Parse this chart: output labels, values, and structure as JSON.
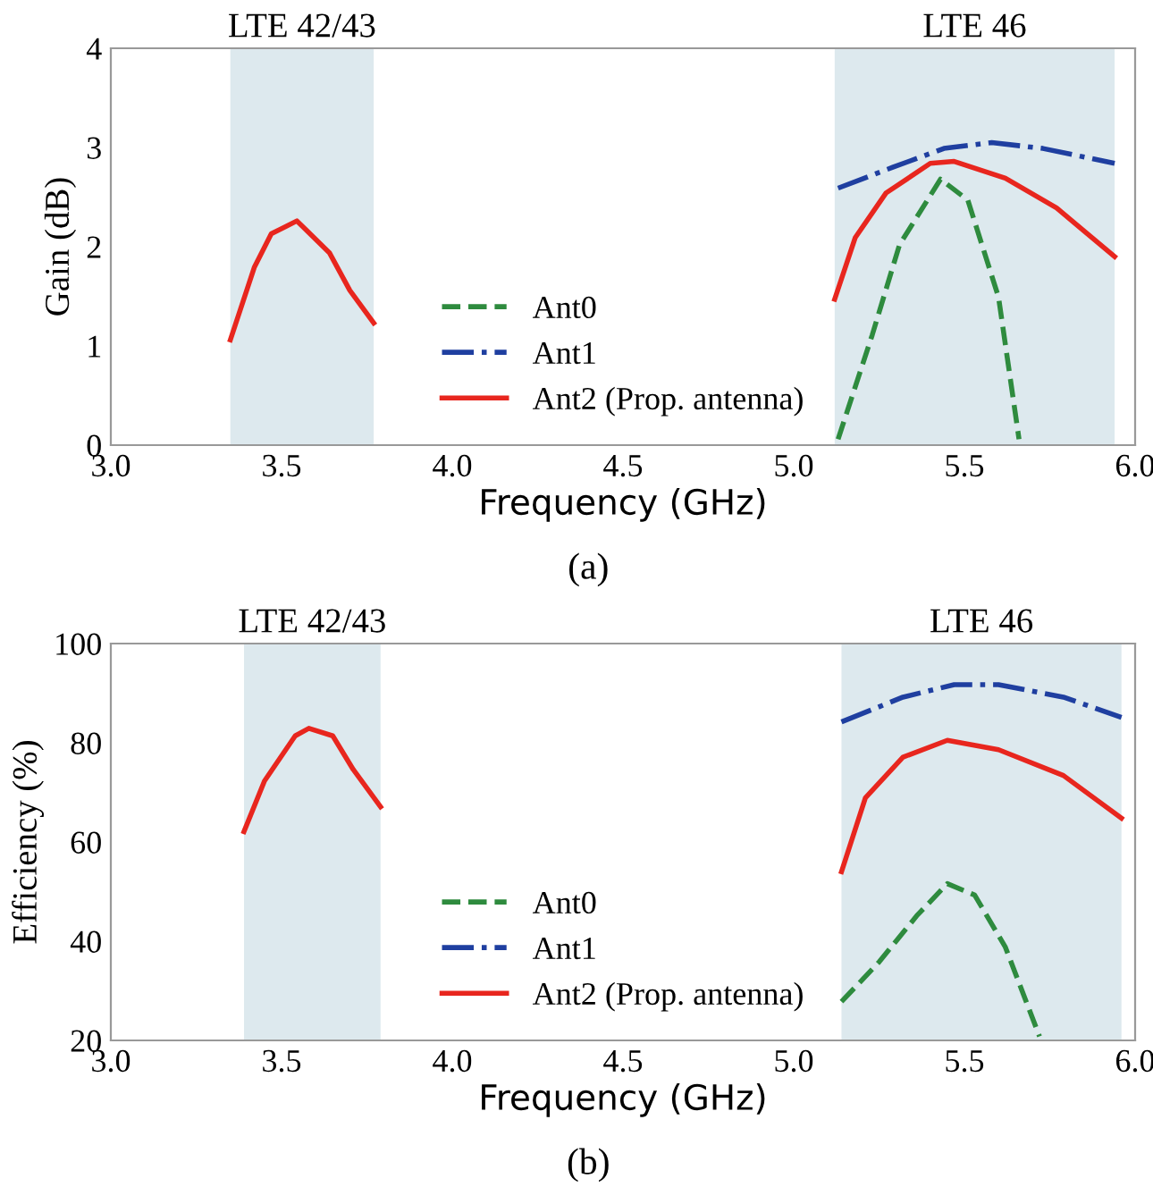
{
  "chart_data": [
    {
      "type": "line",
      "xlabel": "Frequency (GHz)",
      "ylabel": "Gain (dB)",
      "xlim": [
        3.0,
        6.0
      ],
      "xticks": [
        {
          "value": 3.0,
          "label": "3.0"
        },
        {
          "value": 3.5,
          "label": "3.5"
        },
        {
          "value": 4.0,
          "label": "4.0"
        },
        {
          "value": 4.5,
          "label": "4.5"
        },
        {
          "value": 5.0,
          "label": "5.0"
        },
        {
          "value": 5.5,
          "label": "5.5"
        },
        {
          "value": 6.0,
          "label": "6.0"
        }
      ],
      "ylim": [
        0,
        4
      ],
      "yticks": [
        0,
        1,
        2,
        3,
        4
      ],
      "grid": false,
      "legend": "bottom",
      "bands": [
        {
          "axis": "x",
          "from": 3.35,
          "to": 3.77,
          "label": "LTE 42/43",
          "color": "#dde9ee"
        },
        {
          "axis": "x",
          "from": 5.12,
          "to": 5.94,
          "label": "LTE 46",
          "color": "#dde9ee"
        }
      ],
      "series": [
        {
          "name": "Ant0",
          "color": "#2e8b3e",
          "line_style": "dashed",
          "x": [
            5.13,
            5.23,
            5.31,
            5.43,
            5.51,
            5.6,
            5.66
          ],
          "values": [
            0.06,
            1.11,
            2.02,
            2.68,
            2.47,
            1.49,
            0.06
          ]
        },
        {
          "name": "Ant1",
          "color": "#1f3fa0",
          "line_style": "dashdot",
          "x": [
            5.13,
            5.29,
            5.44,
            5.58,
            5.73,
            5.94
          ],
          "values": [
            2.59,
            2.8,
            2.99,
            3.05,
            2.99,
            2.84
          ]
        },
        {
          "name": "Ant2 (Prop. antenna)",
          "color": "#e8261e",
          "line_style": "solid",
          "x": [
            3.35,
            3.42,
            3.47,
            3.545,
            3.64,
            3.7,
            3.77,
            null,
            5.12,
            5.18,
            5.27,
            5.4,
            5.47,
            5.62,
            5.77,
            5.94
          ],
          "values": [
            1.06,
            1.79,
            2.13,
            2.26,
            1.94,
            1.56,
            1.23,
            null,
            1.47,
            2.09,
            2.54,
            2.84,
            2.86,
            2.69,
            2.39,
            1.9
          ]
        }
      ],
      "annotations": [
        "(a)"
      ]
    },
    {
      "type": "line",
      "xlabel": "Frequency (GHz)",
      "ylabel": "Efficiency (%)",
      "xlim": [
        3.0,
        6.0
      ],
      "xticks": [
        {
          "value": 3.0,
          "label": "3.0"
        },
        {
          "value": 3.5,
          "label": "3.5"
        },
        {
          "value": 4.0,
          "label": "4.0"
        },
        {
          "value": 4.5,
          "label": "4.5"
        },
        {
          "value": 5.0,
          "label": "5.0"
        },
        {
          "value": 5.5,
          "label": "5.5"
        },
        {
          "value": 6.0,
          "label": "6.0"
        }
      ],
      "ylim": [
        20,
        100
      ],
      "yticks": [
        20,
        40,
        60,
        80,
        100
      ],
      "grid": false,
      "legend": "bottom",
      "bands": [
        {
          "axis": "x",
          "from": 3.39,
          "to": 3.79,
          "label": "LTE 42/43",
          "color": "#dde9ee"
        },
        {
          "axis": "x",
          "from": 5.14,
          "to": 5.96,
          "label": "LTE 46",
          "color": "#dde9ee"
        }
      ],
      "series": [
        {
          "name": "Ant0",
          "color": "#2e8b3e",
          "line_style": "dashed",
          "x": [
            5.14,
            5.25,
            5.36,
            5.45,
            5.53,
            5.62,
            5.72
          ],
          "values": [
            27.8,
            35.8,
            45.1,
            51.6,
            49.3,
            38.8,
            20.8
          ]
        },
        {
          "name": "Ant1",
          "color": "#1f3fa0",
          "line_style": "dashdot",
          "x": [
            5.14,
            5.32,
            5.47,
            5.6,
            5.79,
            5.96
          ],
          "values": [
            84.2,
            89.2,
            91.7,
            91.7,
            89.2,
            85.1
          ]
        },
        {
          "name": "Ant2 (Prop. antenna)",
          "color": "#e8261e",
          "line_style": "solid",
          "x": [
            3.39,
            3.45,
            3.54,
            3.58,
            3.65,
            3.71,
            3.79,
            null,
            5.14,
            5.21,
            5.32,
            5.45,
            5.6,
            5.79,
            5.96
          ],
          "values": [
            62.1,
            72.3,
            81.4,
            82.9,
            81.4,
            74.6,
            67.1,
            null,
            54.0,
            68.9,
            77.1,
            80.5,
            78.6,
            73.4,
            64.8
          ]
        }
      ],
      "annotations": [
        "(b)"
      ]
    }
  ]
}
